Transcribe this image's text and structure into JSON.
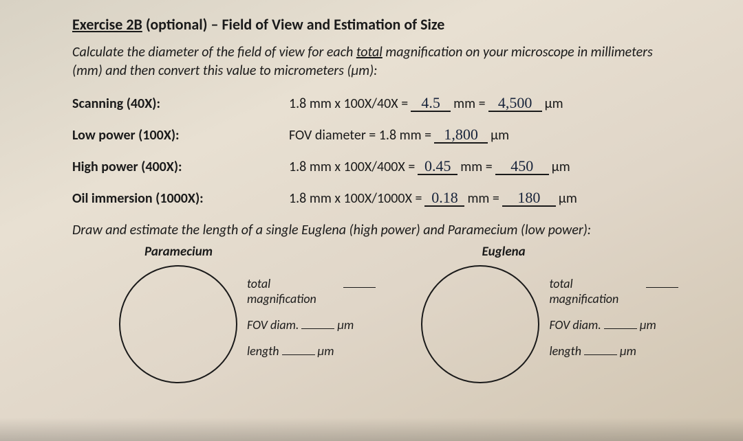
{
  "title": {
    "exercise": "Exercise 2B",
    "optional": "(optional)",
    "dash": "–",
    "subject": "Field of View and Estimation of Size"
  },
  "instruction1_a": "Calculate the diameter of the field of view for each ",
  "instruction1_ul": "total",
  "instruction1_b": " magnification on your microscope in millimeters (mm) and then convert this value to micrometers (μm):",
  "rows": {
    "scanning": {
      "label": "Scanning (40X):",
      "lhs": "1.8 mm  x  100X/40X  = ",
      "mm_val": "4.5",
      "mid": " mm  = ",
      "um_val": "4,500",
      "unit": " μm"
    },
    "low": {
      "label": "Low power (100X):",
      "lhs": "FOV diameter  =  1.8 mm  = ",
      "um_val": "1,800",
      "unit": " μm"
    },
    "high": {
      "label": "High power (400X):",
      "lhs": "1.8 mm  x  100X/400X  = ",
      "mm_val": "0.45",
      "mid": " mm  = ",
      "um_val": "450",
      "unit": " μm"
    },
    "oil": {
      "label": "Oil immersion (1000X):",
      "lhs": "1.8 mm  x  100X/1000X  = ",
      "mm_val": "0.18",
      "mid": " mm  = ",
      "um_val": "180",
      "unit": " μm"
    }
  },
  "instruction2": "Draw and estimate the length of a single Euglena (high power) and Paramecium (low power):",
  "organisms": {
    "paramecium": {
      "name": "Paramecium",
      "fields": {
        "mag_label": "total magnification",
        "fov_label": "FOV diam.",
        "len_label": "length",
        "unit": "μm"
      }
    },
    "euglena": {
      "name": "Euglena",
      "fields": {
        "mag_label": "total magnification",
        "fov_label": "FOV diam.",
        "len_label": "length",
        "unit": "μm"
      }
    }
  },
  "style": {
    "handwriting_color": "#17233a",
    "paper_bg": "#e0d6c8",
    "circle_border": "#1a1a1a"
  }
}
